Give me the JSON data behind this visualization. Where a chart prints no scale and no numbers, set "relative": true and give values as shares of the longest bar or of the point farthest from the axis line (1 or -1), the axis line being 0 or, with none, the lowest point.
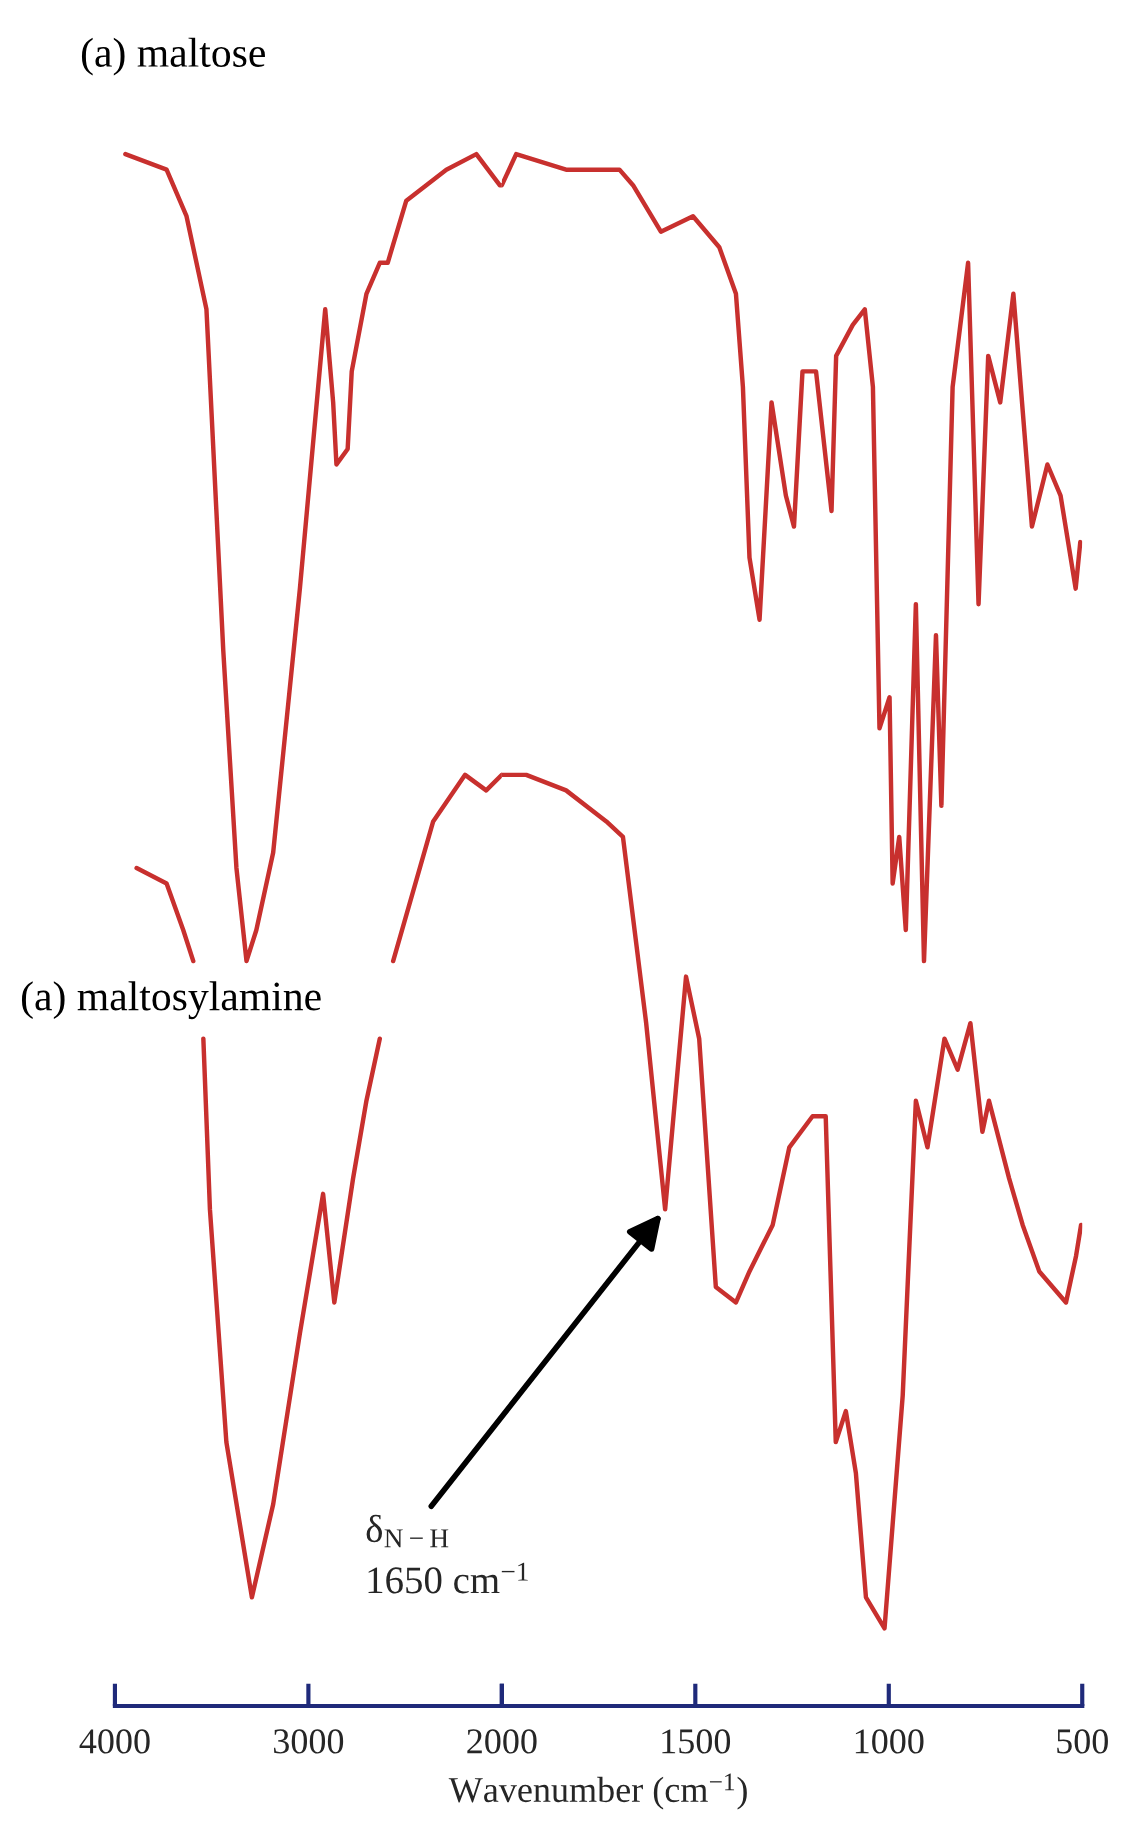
{
  "chart_data": [
    {
      "type": "line",
      "relative": true,
      "xlim": [
        4000,
        2000
      ],
      "xticks": [
        4000,
        3000,
        {
          "value": 2000,
          "label": null
        }
      ],
      "tick_labels": "x",
      "grid": false,
      "legend": false,
      "series": [
        {
          "name": "(a) maltose",
          "color": "#c8302e",
          "x": [
            3946,
            3733,
            3630,
            3527,
            3440,
            3372,
            3320,
            3269,
            3182,
            3044,
            2913,
            2872,
            2855,
            2797,
            2776,
            2700,
            2631,
            2590,
            2494,
            2287,
            2132,
            2011,
            2000
          ],
          "values": [
            1.0,
            0.99,
            0.96,
            0.9,
            0.68,
            0.54,
            0.48,
            0.5,
            0.55,
            0.72,
            0.9,
            0.84,
            0.8,
            0.81,
            0.86,
            0.91,
            0.93,
            0.93,
            0.97,
            0.99,
            1.0,
            0.98,
            0.98
          ]
        },
        {
          "name": "(a) maltosylamine",
          "color": "#c8302e",
          "x": [
            3888,
            3733,
            3647,
            3595,
            3570,
            3543,
            3509,
            3424,
            3292,
            3182,
            3044,
            2924,
            2866,
            2769,
            2700,
            2631,
            2600,
            2562,
            2355,
            2190,
            2081,
            2000
          ],
          "values": [
            0.54,
            0.53,
            0.5,
            0.48,
            null,
            0.43,
            0.32,
            0.17,
            0.07,
            0.13,
            0.24,
            0.33,
            0.26,
            0.34,
            0.39,
            0.43,
            null,
            0.48,
            0.57,
            0.6,
            0.59,
            0.6
          ]
        }
      ]
    },
    {
      "type": "line",
      "relative": true,
      "xlabel": "Wavenumber (cm$^{−1}$)",
      "xlim": [
        2000,
        500
      ],
      "xticks": [
        2000,
        1500,
        1000,
        500
      ],
      "tick_labels": "x",
      "grid": false,
      "legend": false,
      "series": [
        {
          "color": "#c8302e",
          "x": [
            2000,
            1963,
            1834,
            1747,
            1696,
            1661,
            1589,
            1506,
            1438,
            1395,
            1377,
            1360,
            1334,
            1303,
            1266,
            1245,
            1223,
            1188,
            1148,
            1136,
            1093,
            1062,
            1041,
            1024,
            998,
            990,
            973,
            956,
            930,
            909,
            878,
            864,
            835,
            795,
            768,
            743,
            712,
            678,
            630,
            590,
            556,
            517,
            505
          ],
          "values": [
            0.98,
            1.0,
            0.99,
            0.99,
            0.99,
            0.98,
            0.95,
            0.96,
            0.94,
            0.91,
            0.85,
            0.74,
            0.7,
            0.84,
            0.78,
            0.76,
            0.86,
            0.86,
            0.77,
            0.87,
            0.89,
            0.9,
            0.85,
            0.63,
            0.65,
            0.53,
            0.56,
            0.5,
            0.71,
            0.48,
            0.69,
            0.58,
            0.85,
            0.93,
            0.71,
            0.87,
            0.84,
            0.91,
            0.76,
            0.8,
            0.78,
            0.72,
            0.75
          ]
        },
        {
          "color": "#c8302e",
          "x": [
            2000,
            1980,
            1937,
            1834,
            1730,
            1687,
            1627,
            1578,
            1524,
            1490,
            1447,
            1395,
            1360,
            1300,
            1257,
            1197,
            1163,
            1137,
            1111,
            1085,
            1059,
            1011,
            964,
            930,
            900,
            856,
            822,
            789,
            758,
            741,
            689,
            654,
            611,
            542,
            516,
            503
          ],
          "values": [
            0.6,
            0.6,
            0.6,
            0.59,
            0.57,
            0.56,
            0.44,
            0.32,
            0.47,
            0.43,
            0.27,
            0.26,
            0.28,
            0.31,
            0.36,
            0.38,
            0.38,
            0.17,
            0.19,
            0.15,
            0.07,
            0.05,
            0.2,
            0.39,
            0.36,
            0.43,
            0.41,
            0.44,
            0.37,
            0.39,
            0.34,
            0.31,
            0.28,
            0.26,
            0.29,
            0.31
          ]
        }
      ],
      "annotations": [
        {
          "text": "δ$_{N−H}$\n1650 cm$^{−1}$",
          "x": 1578,
          "y": 0.32
        }
      ]
    }
  ]
}
